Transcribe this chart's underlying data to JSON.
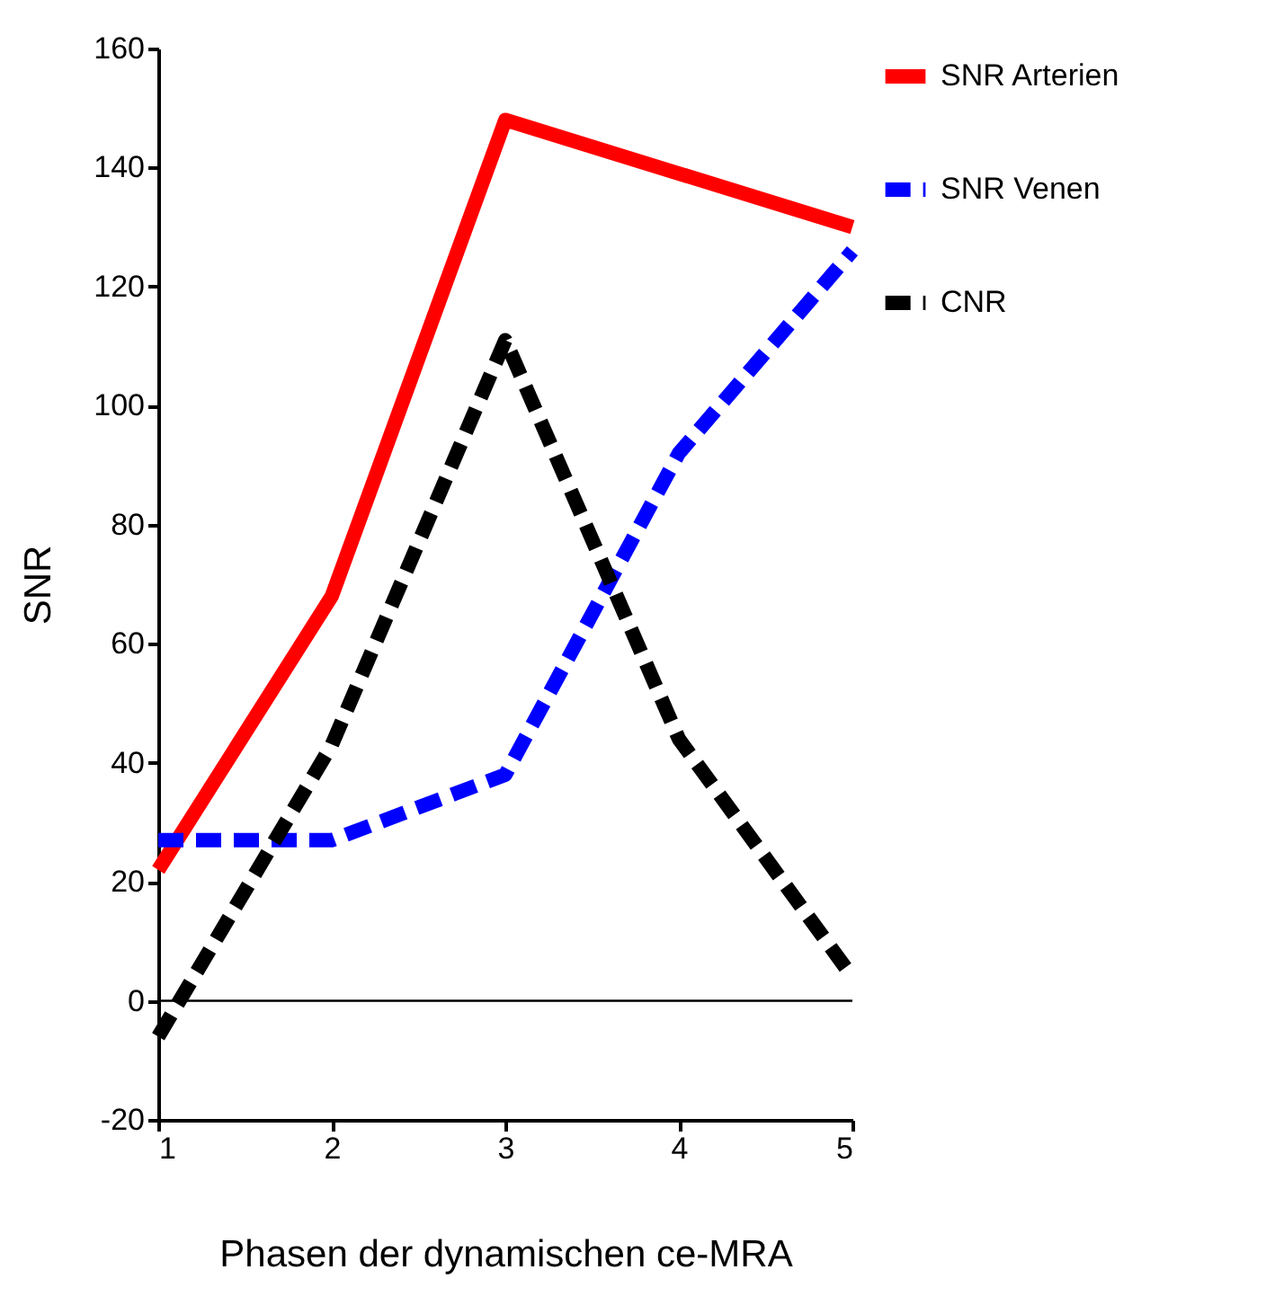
{
  "chart_data": {
    "type": "line",
    "xlabel": "Phasen der dynamischen ce-MRA",
    "ylabel": "SNR",
    "x": [
      1,
      2,
      3,
      4,
      5
    ],
    "series": [
      {
        "name": "SNR Arterien",
        "color": "#ff0000",
        "line_style": "solid",
        "values": [
          22,
          68,
          148,
          139,
          130
        ]
      },
      {
        "name": "SNR Venen",
        "color": "#0000ff",
        "line_style": "dashed",
        "values": [
          27,
          27,
          38,
          92,
          126
        ]
      },
      {
        "name": "CNR",
        "color": "#000000",
        "line_style": "dashed",
        "values": [
          -6,
          43,
          111,
          44,
          4
        ]
      }
    ],
    "xlim": [
      1,
      5
    ],
    "xticks": [
      1,
      2,
      3,
      4,
      5
    ],
    "ylim": [
      -20,
      160
    ],
    "yticks": [
      -20,
      0,
      20,
      40,
      60,
      80,
      100,
      120,
      140,
      160
    ],
    "ref_lines": [
      {
        "axis": "y",
        "value": 0,
        "color": "#000000"
      }
    ],
    "grid": false,
    "legend": "right",
    "marker": "none"
  }
}
